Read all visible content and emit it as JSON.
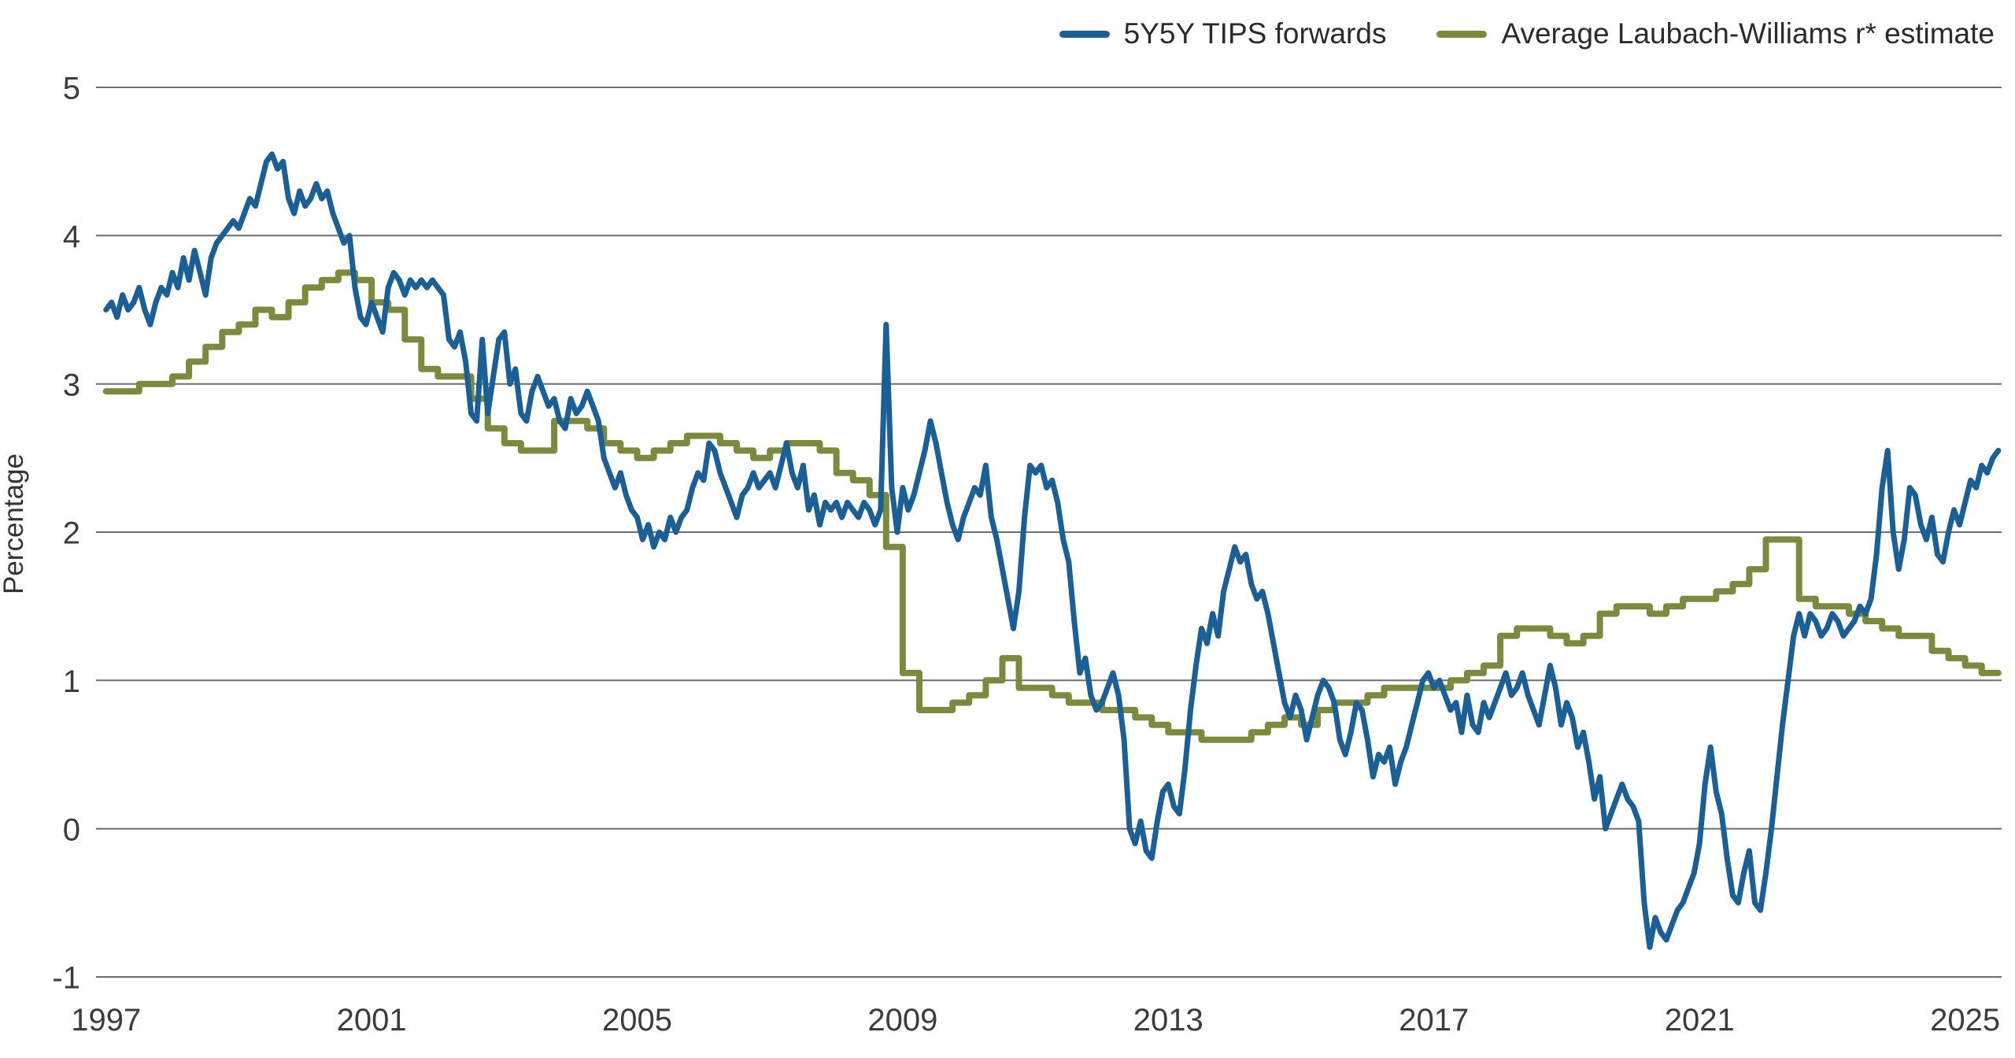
{
  "page": {
    "background": "#ffffff"
  },
  "legend": {
    "items": [
      {
        "label": "5Y5Y TIPS forwards",
        "color": "#1a5f96"
      },
      {
        "label": "Average Laubach-Williams r* estimate",
        "color": "#7a8b3e"
      }
    ]
  },
  "chart_data": {
    "type": "line",
    "title": "",
    "xlabel": "",
    "ylabel": "Percentage",
    "ylim": [
      -1,
      5
    ],
    "xlim": [
      1996.85,
      2025.55
    ],
    "yticks": [
      5,
      4,
      3,
      2,
      1,
      0,
      -1
    ],
    "xticks": [
      1997,
      2001,
      2005,
      2009,
      2013,
      2017,
      2021,
      2025
    ],
    "grid": "horizontal",
    "grid_color": "#6e6e6e",
    "tick_color": "#3c3c3c",
    "legend_position": "top-right",
    "series": [
      {
        "name": "5Y5Y TIPS forwards",
        "color": "#1a5f96",
        "style": "linear",
        "stroke_width": 7,
        "start_year": 1997,
        "points_per_year": 12,
        "values": [
          3.5,
          3.55,
          3.45,
          3.6,
          3.5,
          3.55,
          3.65,
          3.5,
          3.4,
          3.55,
          3.65,
          3.6,
          3.75,
          3.65,
          3.85,
          3.7,
          3.9,
          3.75,
          3.6,
          3.85,
          3.95,
          4.0,
          4.05,
          4.1,
          4.05,
          4.15,
          4.25,
          4.2,
          4.35,
          4.5,
          4.55,
          4.45,
          4.5,
          4.25,
          4.15,
          4.3,
          4.2,
          4.25,
          4.35,
          4.25,
          4.3,
          4.15,
          4.05,
          3.95,
          4.0,
          3.65,
          3.45,
          3.4,
          3.55,
          3.45,
          3.35,
          3.65,
          3.75,
          3.7,
          3.6,
          3.7,
          3.65,
          3.7,
          3.65,
          3.7,
          3.65,
          3.6,
          3.3,
          3.25,
          3.35,
          3.15,
          2.8,
          2.75,
          3.3,
          2.8,
          3.05,
          3.3,
          3.35,
          3.0,
          3.1,
          2.8,
          2.75,
          2.95,
          3.05,
          2.95,
          2.85,
          2.9,
          2.75,
          2.7,
          2.9,
          2.8,
          2.85,
          2.95,
          2.85,
          2.75,
          2.5,
          2.4,
          2.3,
          2.4,
          2.25,
          2.15,
          2.1,
          1.95,
          2.05,
          1.9,
          2.0,
          1.95,
          2.1,
          2.0,
          2.1,
          2.15,
          2.3,
          2.4,
          2.35,
          2.6,
          2.55,
          2.4,
          2.3,
          2.2,
          2.1,
          2.25,
          2.3,
          2.4,
          2.3,
          2.35,
          2.4,
          2.3,
          2.45,
          2.6,
          2.4,
          2.3,
          2.45,
          2.15,
          2.25,
          2.05,
          2.2,
          2.15,
          2.2,
          2.1,
          2.2,
          2.15,
          2.1,
          2.2,
          2.15,
          2.05,
          2.15,
          3.4,
          2.3,
          2.0,
          2.3,
          2.15,
          2.25,
          2.4,
          2.55,
          2.75,
          2.6,
          2.4,
          2.2,
          2.05,
          1.95,
          2.1,
          2.2,
          2.3,
          2.25,
          2.45,
          2.1,
          1.95,
          1.75,
          1.55,
          1.35,
          1.6,
          2.1,
          2.45,
          2.4,
          2.45,
          2.3,
          2.35,
          2.2,
          1.95,
          1.8,
          1.4,
          1.05,
          1.15,
          0.9,
          0.8,
          0.85,
          0.95,
          1.05,
          0.9,
          0.6,
          0.0,
          -0.1,
          0.05,
          -0.15,
          -0.2,
          0.05,
          0.25,
          0.3,
          0.15,
          0.1,
          0.4,
          0.8,
          1.1,
          1.35,
          1.25,
          1.45,
          1.3,
          1.6,
          1.75,
          1.9,
          1.8,
          1.85,
          1.65,
          1.55,
          1.6,
          1.45,
          1.25,
          1.05,
          0.85,
          0.75,
          0.9,
          0.8,
          0.6,
          0.75,
          0.9,
          1.0,
          0.95,
          0.85,
          0.6,
          0.5,
          0.65,
          0.85,
          0.8,
          0.6,
          0.35,
          0.5,
          0.45,
          0.55,
          0.3,
          0.45,
          0.55,
          0.7,
          0.85,
          1.0,
          1.05,
          0.95,
          1.0,
          0.9,
          0.8,
          0.85,
          0.65,
          0.9,
          0.7,
          0.65,
          0.85,
          0.75,
          0.85,
          0.95,
          1.05,
          0.9,
          0.95,
          1.05,
          0.9,
          0.8,
          0.7,
          0.9,
          1.1,
          0.95,
          0.7,
          0.85,
          0.75,
          0.55,
          0.65,
          0.45,
          0.2,
          0.35,
          0.0,
          0.1,
          0.2,
          0.3,
          0.2,
          0.15,
          0.05,
          -0.5,
          -0.8,
          -0.6,
          -0.7,
          -0.75,
          -0.65,
          -0.55,
          -0.5,
          -0.4,
          -0.3,
          -0.1,
          0.3,
          0.55,
          0.25,
          0.1,
          -0.2,
          -0.45,
          -0.5,
          -0.3,
          -0.15,
          -0.5,
          -0.55,
          -0.3,
          0.0,
          0.35,
          0.7,
          1.0,
          1.3,
          1.45,
          1.3,
          1.45,
          1.4,
          1.3,
          1.35,
          1.45,
          1.4,
          1.3,
          1.35,
          1.4,
          1.5,
          1.45,
          1.55,
          1.85,
          2.3,
          2.55,
          2.0,
          1.75,
          1.95,
          2.3,
          2.25,
          2.05,
          1.95,
          2.1,
          1.85,
          1.8,
          2.0,
          2.15,
          2.05,
          2.2,
          2.35,
          2.3,
          2.45,
          2.4,
          2.5,
          2.55
        ]
      },
      {
        "name": "Average Laubach-Williams r* estimate",
        "color": "#7a8b3e",
        "style": "step",
        "stroke_width": 8,
        "start_year": 1997,
        "points_per_year": 4,
        "values": [
          2.95,
          2.95,
          3.0,
          3.0,
          3.05,
          3.15,
          3.25,
          3.35,
          3.4,
          3.5,
          3.45,
          3.55,
          3.65,
          3.7,
          3.75,
          3.7,
          3.55,
          3.5,
          3.3,
          3.1,
          3.05,
          3.05,
          2.9,
          2.7,
          2.6,
          2.55,
          2.55,
          2.75,
          2.75,
          2.7,
          2.6,
          2.55,
          2.5,
          2.55,
          2.6,
          2.65,
          2.65,
          2.6,
          2.55,
          2.5,
          2.55,
          2.6,
          2.6,
          2.55,
          2.4,
          2.35,
          2.25,
          1.9,
          1.05,
          0.8,
          0.8,
          0.85,
          0.9,
          1.0,
          1.15,
          0.95,
          0.95,
          0.9,
          0.85,
          0.85,
          0.8,
          0.8,
          0.75,
          0.7,
          0.65,
          0.65,
          0.6,
          0.6,
          0.6,
          0.65,
          0.7,
          0.75,
          0.7,
          0.8,
          0.85,
          0.85,
          0.9,
          0.95,
          0.95,
          0.95,
          0.95,
          1.0,
          1.05,
          1.1,
          1.3,
          1.35,
          1.35,
          1.3,
          1.25,
          1.3,
          1.45,
          1.5,
          1.5,
          1.45,
          1.5,
          1.55,
          1.55,
          1.6,
          1.65,
          1.75,
          1.95,
          1.95,
          1.55,
          1.5,
          1.5,
          1.45,
          1.4,
          1.35,
          1.3,
          1.3,
          1.2,
          1.15,
          1.1,
          1.05
        ]
      }
    ]
  }
}
